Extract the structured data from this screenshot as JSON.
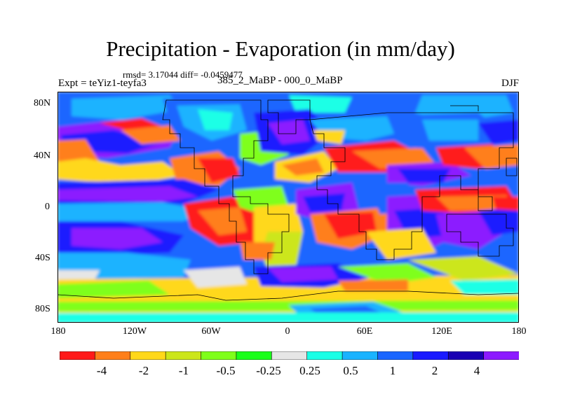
{
  "title": "Precipitation - Evaporation (in mm/day)",
  "stats": "rmsd= 3.17044 diff= -0.0459477",
  "experiment": "Expt = teYiz1-teyfa3",
  "comparison": "385_2_MaBP - 000_0_MaBP",
  "season": "DJF",
  "lat_labels": [
    "80N",
    "40N",
    "0",
    "40S",
    "80S"
  ],
  "lon_labels": [
    "180",
    "120W",
    "60W",
    "0",
    "60E",
    "120E",
    "180"
  ],
  "colorbar": {
    "colors": [
      "#ff1a1a",
      "#ff7f1a",
      "#ffd81a",
      "#cce61a",
      "#7fff1a",
      "#1aff1a",
      "#e6e6e6",
      "#1affe6",
      "#1ab3ff",
      "#1a66ff",
      "#1a1aff",
      "#1a00b3",
      "#8c1aff"
    ],
    "labels": [
      "-4",
      "-2",
      "-1",
      "-0.5",
      "-0.25",
      "0.25",
      "0.5",
      "1",
      "2",
      "4"
    ]
  }
}
